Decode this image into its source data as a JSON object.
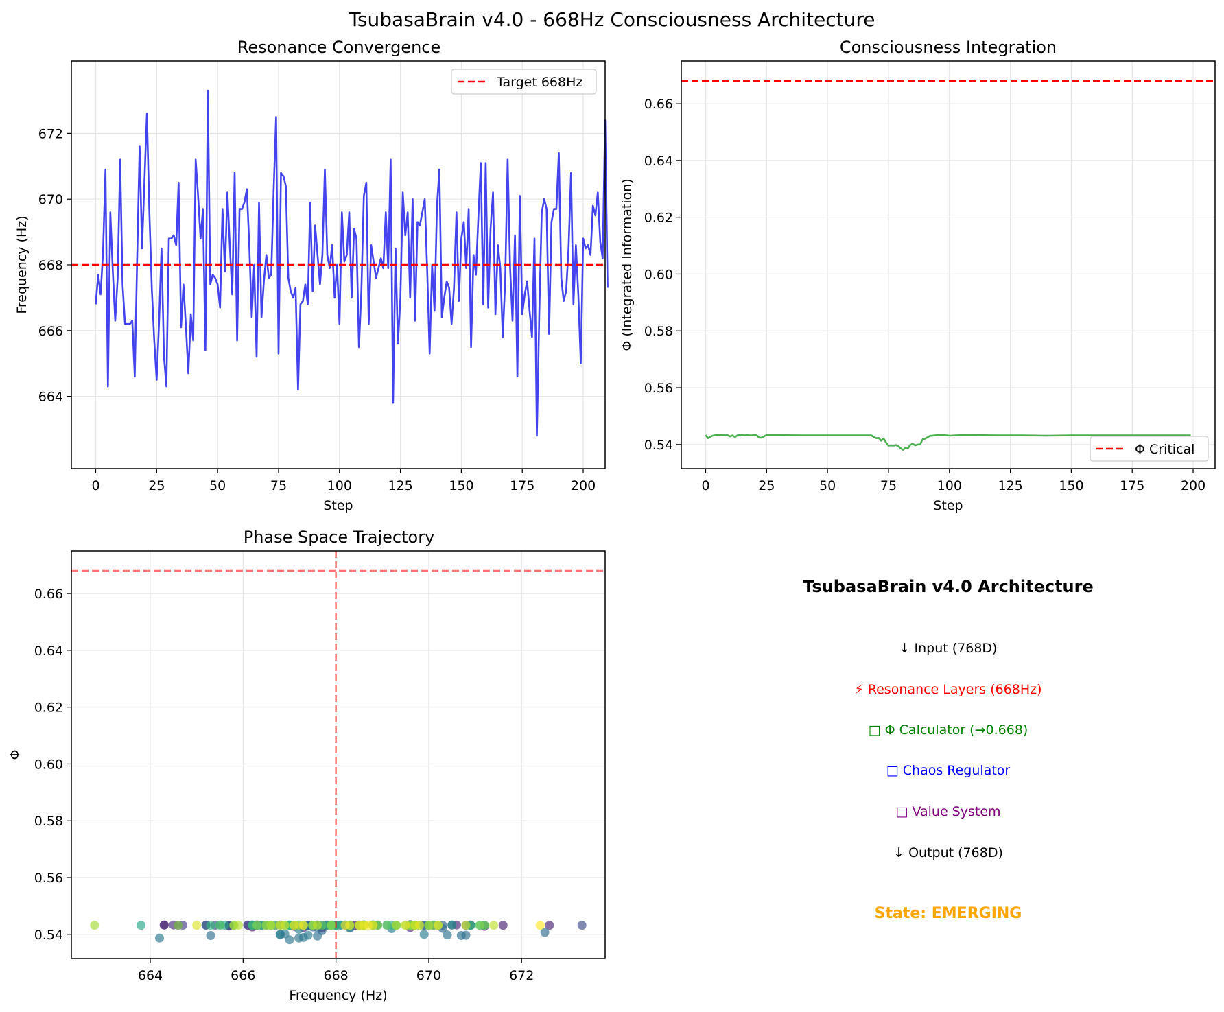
{
  "figure_title": "TsubasaBrain v4.0 - 668Hz Consciousness Architecture",
  "colors": {
    "freq_line": "#4444ee",
    "phi_line": "#4caf50",
    "reference": "#ff0000",
    "grid": "#e6e6e6",
    "emerging": "#ffa500"
  },
  "chart_data": [
    {
      "id": "resonance",
      "type": "line",
      "title": "Resonance Convergence",
      "xlabel": "Step",
      "ylabel": "Frequency (Hz)",
      "xlim": [
        -10,
        209
      ],
      "ylim": [
        661.8,
        674.2
      ],
      "xticks": [
        0,
        25,
        50,
        75,
        100,
        125,
        150,
        175,
        200
      ],
      "yticks": [
        664,
        666,
        668,
        670,
        672
      ],
      "grid": true,
      "legend": {
        "position": "upper right",
        "entries": [
          "Target 668Hz"
        ]
      },
      "reference_line": {
        "axis": "y",
        "value": 668,
        "style": "dashed"
      },
      "series": [
        {
          "x_start": 0,
          "x_step": 1,
          "values": [
            666.8,
            667.7,
            667.1,
            668.4,
            670.9,
            664.3,
            669.6,
            667.8,
            666.3,
            667.6,
            671.2,
            667.4,
            666.2,
            666.2,
            666.2,
            666.3,
            664.6,
            668.2,
            671.6,
            668.5,
            670.6,
            672.6,
            669.6,
            667.3,
            665.7,
            664.5,
            666.3,
            668.5,
            665.2,
            664.3,
            668.8,
            668.8,
            668.9,
            668.6,
            670.5,
            666.1,
            667.4,
            666.1,
            664.7,
            666.5,
            665.7,
            671.2,
            670.1,
            668.8,
            669.7,
            665.4,
            673.3,
            667.4,
            667.7,
            667.6,
            667.4,
            666.7,
            669.7,
            667.8,
            670.2,
            668.6,
            667.1,
            670.8,
            665.7,
            669.7,
            669.7,
            669.9,
            670.3,
            668.6,
            666.4,
            668.0,
            665.2,
            669.9,
            666.4,
            667.5,
            668.3,
            667.6,
            667.7,
            670.3,
            672.5,
            665.3,
            670.8,
            670.7,
            670.4,
            667.6,
            667.2,
            667.0,
            667.3,
            664.2,
            666.8,
            666.9,
            667.4,
            666.8,
            669.9,
            667.2,
            669.2,
            668.3,
            667.4,
            668.3,
            670.9,
            668.3,
            667.9,
            668.6,
            667.0,
            668.0,
            666.2,
            669.6,
            668.1,
            668.3,
            669.6,
            667.0,
            669.1,
            668.8,
            665.5,
            667.2,
            670.1,
            670.5,
            666.2,
            668.6,
            668.1,
            667.6,
            667.9,
            668.2,
            667.9,
            669.6,
            667.9,
            671.2,
            663.8,
            668.5,
            665.6,
            667.0,
            670.2,
            668.9,
            669.6,
            667.0,
            670.0,
            666.3,
            669.3,
            669.2,
            669.6,
            670.0,
            667.8,
            665.3,
            668.0,
            666.6,
            669.8,
            670.9,
            666.4,
            667.0,
            667.5,
            667.3,
            666.2,
            667.3,
            669.6,
            666.9,
            668.8,
            669.3,
            667.9,
            669.7,
            665.5,
            668.3,
            667.7,
            669.5,
            671.1,
            666.8,
            671.1,
            666.7,
            669.1,
            670.2,
            666.5,
            668.6,
            667.9,
            665.8,
            667.5,
            671.2,
            667.9,
            666.3,
            668.9,
            664.6,
            670.1,
            666.5,
            667.1,
            667.5,
            666.6,
            665.8,
            668.8,
            662.8,
            666.6,
            669.6,
            670.0,
            669.7,
            665.9,
            669.3,
            669.7,
            669.7,
            671.4,
            667.6,
            666.9,
            667.2,
            668.5,
            670.8,
            666.8,
            668.6,
            667.1,
            665.0,
            668.8,
            668.5,
            668.6,
            668.3,
            669.8,
            669.5,
            670.2,
            668.7,
            668.2,
            672.4,
            667.3
          ]
        }
      ]
    },
    {
      "id": "phi",
      "type": "line",
      "title": "Consciousness Integration",
      "xlabel": "Step",
      "ylabel": "Φ (Integrated Information)",
      "xlim": [
        -10,
        209
      ],
      "ylim": [
        0.5315,
        0.675
      ],
      "xticks": [
        0,
        25,
        50,
        75,
        100,
        125,
        150,
        175,
        200
      ],
      "yticks": [
        0.54,
        0.56,
        0.58,
        0.6,
        0.62,
        0.64,
        0.66
      ],
      "grid": true,
      "legend": {
        "position": "lower right",
        "entries": [
          "Φ Critical"
        ]
      },
      "reference_line": {
        "axis": "y",
        "value": 0.668,
        "style": "dashed"
      },
      "series": [
        {
          "x": [
            0,
            1,
            2,
            3,
            4,
            5,
            6,
            7,
            8,
            9,
            10,
            11,
            12,
            13,
            14,
            15,
            16,
            17,
            18,
            19,
            20,
            21,
            22,
            23,
            24,
            25,
            30,
            40,
            50,
            60,
            66,
            68,
            69,
            70,
            71,
            72,
            73,
            74,
            75,
            76,
            77,
            78,
            79,
            80,
            81,
            82,
            83,
            84,
            85,
            86,
            87,
            88,
            89,
            90,
            92,
            95,
            98,
            100,
            105,
            110,
            120,
            130,
            140,
            150,
            160,
            170,
            180,
            190,
            199
          ],
          "values": [
            0.5433,
            0.5422,
            0.5428,
            0.5431,
            0.5433,
            0.5433,
            0.5434,
            0.5433,
            0.5432,
            0.5433,
            0.5428,
            0.5432,
            0.5426,
            0.5432,
            0.5433,
            0.5433,
            0.5432,
            0.5433,
            0.5432,
            0.5432,
            0.5433,
            0.5432,
            0.5424,
            0.5424,
            0.5429,
            0.5433,
            0.5433,
            0.5432,
            0.5432,
            0.5432,
            0.5432,
            0.5432,
            0.5426,
            0.5422,
            0.5423,
            0.5413,
            0.5421,
            0.5407,
            0.5396,
            0.5397,
            0.5396,
            0.5398,
            0.5394,
            0.5387,
            0.5381,
            0.5389,
            0.5387,
            0.5399,
            0.5402,
            0.5397,
            0.54,
            0.54,
            0.5418,
            0.542,
            0.543,
            0.5433,
            0.5433,
            0.5431,
            0.5433,
            0.5433,
            0.5432,
            0.5432,
            0.5431,
            0.5432,
            0.5432,
            0.5432,
            0.5432,
            0.5432,
            0.5432
          ]
        }
      ]
    },
    {
      "id": "phase",
      "type": "scatter",
      "title": "Phase Space Trajectory",
      "xlabel": "Frequency (Hz)",
      "ylabel": "Φ",
      "xlim": [
        662.3,
        673.8
      ],
      "ylim": [
        0.5315,
        0.675
      ],
      "xticks": [
        664,
        666,
        668,
        670,
        672
      ],
      "yticks": [
        0.54,
        0.56,
        0.58,
        0.6,
        0.62,
        0.64,
        0.66
      ],
      "grid": true,
      "reference_lines": [
        {
          "axis": "x",
          "value": 668,
          "style": "dashed"
        },
        {
          "axis": "y",
          "value": 0.668,
          "style": "dashed"
        }
      ],
      "colormap": "viridis",
      "color_by": "step",
      "note_points": "x values are the Resonance Convergence series; y values follow the Φ series; color encodes step"
    }
  ],
  "architecture": {
    "title": "TsubasaBrain v4.0 Architecture",
    "items": [
      {
        "text": "↓ Input (768D)",
        "color": "#000000"
      },
      {
        "text": "⚡ Resonance Layers (668Hz)",
        "color": "#ff0000"
      },
      {
        "text": "□ Φ Calculator (→0.668)",
        "color": "#008000"
      },
      {
        "text": "□ Chaos Regulator",
        "color": "#0000ff"
      },
      {
        "text": "□ Value System",
        "color": "#800080"
      },
      {
        "text": "↓ Output (768D)",
        "color": "#000000"
      }
    ],
    "state": "State: EMERGING"
  }
}
